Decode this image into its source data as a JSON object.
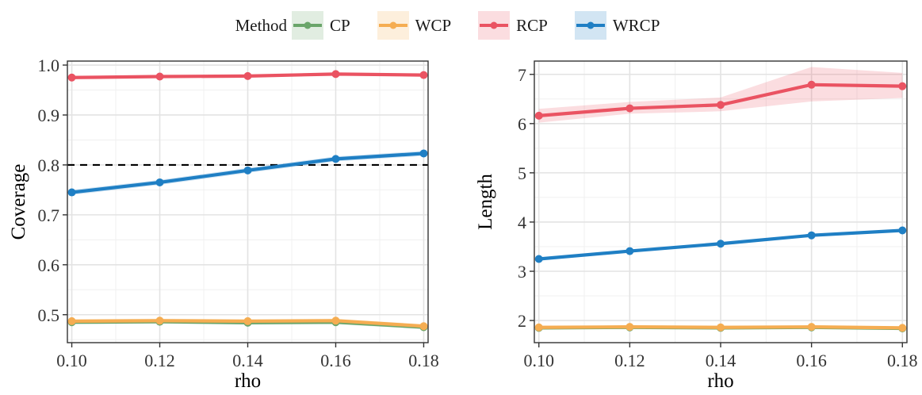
{
  "legend": {
    "title": "Method",
    "items": [
      {
        "name": "CP",
        "color": "#6aa56a"
      },
      {
        "name": "WCP",
        "color": "#f5ad52"
      },
      {
        "name": "RCP",
        "color": "#ea5362"
      },
      {
        "name": "WRCP",
        "color": "#1f7fc4"
      }
    ]
  },
  "chart_data": [
    {
      "type": "line",
      "title": "",
      "xlabel": "rho",
      "ylabel": "Coverage",
      "x": [
        0.1,
        0.12,
        0.14,
        0.16,
        0.18
      ],
      "x_tick_labels": [
        "0.10",
        "0.12",
        "0.14",
        "0.16",
        "0.18"
      ],
      "xlim": [
        0.099,
        0.181
      ],
      "ylim": [
        0.444,
        1.008
      ],
      "y_ticks": [
        0.5,
        0.6,
        0.7,
        0.8,
        0.9,
        1.0
      ],
      "y_tick_labels": [
        "0.5",
        "0.6",
        "0.7",
        "0.8",
        "0.9",
        "1.0"
      ],
      "reference_line": {
        "y": 0.8,
        "style": "dashed"
      },
      "grid": true,
      "series": [
        {
          "name": "CP",
          "values": [
            0.485,
            0.486,
            0.484,
            0.485,
            0.475
          ],
          "lower": [
            0.481,
            0.482,
            0.48,
            0.481,
            0.471
          ],
          "upper": [
            0.489,
            0.49,
            0.488,
            0.489,
            0.479
          ]
        },
        {
          "name": "WCP",
          "values": [
            0.487,
            0.488,
            0.487,
            0.488,
            0.477
          ],
          "lower": [
            0.483,
            0.484,
            0.483,
            0.484,
            0.473
          ],
          "upper": [
            0.491,
            0.492,
            0.491,
            0.492,
            0.481
          ]
        },
        {
          "name": "RCP",
          "values": [
            0.975,
            0.977,
            0.978,
            0.982,
            0.98
          ],
          "lower": [
            0.973,
            0.975,
            0.976,
            0.979,
            0.977
          ],
          "upper": [
            0.977,
            0.979,
            0.98,
            0.985,
            0.983
          ]
        },
        {
          "name": "WRCP",
          "values": [
            0.745,
            0.765,
            0.789,
            0.812,
            0.823
          ],
          "lower": [
            0.74,
            0.76,
            0.784,
            0.807,
            0.818
          ],
          "upper": [
            0.75,
            0.77,
            0.794,
            0.817,
            0.828
          ]
        }
      ]
    },
    {
      "type": "line",
      "title": "",
      "xlabel": "rho",
      "ylabel": "Length",
      "x": [
        0.1,
        0.12,
        0.14,
        0.16,
        0.18
      ],
      "x_tick_labels": [
        "0.10",
        "0.12",
        "0.14",
        "0.16",
        "0.18"
      ],
      "xlim": [
        0.099,
        0.181
      ],
      "ylim": [
        1.55,
        7.27
      ],
      "y_ticks": [
        2,
        3,
        4,
        5,
        6,
        7
      ],
      "y_tick_labels": [
        "2",
        "3",
        "4",
        "5",
        "6",
        "7"
      ],
      "grid": true,
      "series": [
        {
          "name": "CP",
          "values": [
            1.85,
            1.86,
            1.85,
            1.86,
            1.84
          ],
          "lower": [
            1.82,
            1.83,
            1.82,
            1.83,
            1.81
          ],
          "upper": [
            1.88,
            1.89,
            1.88,
            1.89,
            1.87
          ]
        },
        {
          "name": "WCP",
          "values": [
            1.86,
            1.87,
            1.86,
            1.87,
            1.85
          ],
          "lower": [
            1.83,
            1.84,
            1.83,
            1.84,
            1.82
          ],
          "upper": [
            1.89,
            1.9,
            1.89,
            1.9,
            1.88
          ]
        },
        {
          "name": "RCP",
          "values": [
            6.16,
            6.31,
            6.38,
            6.79,
            6.76
          ],
          "lower": [
            6.02,
            6.2,
            6.25,
            6.45,
            6.52
          ],
          "upper": [
            6.3,
            6.44,
            6.53,
            7.15,
            7.03
          ]
        },
        {
          "name": "WRCP",
          "values": [
            3.25,
            3.41,
            3.56,
            3.73,
            3.83
          ],
          "lower": [
            3.23,
            3.39,
            3.54,
            3.71,
            3.81
          ],
          "upper": [
            3.27,
            3.43,
            3.58,
            3.75,
            3.85
          ]
        }
      ]
    }
  ]
}
